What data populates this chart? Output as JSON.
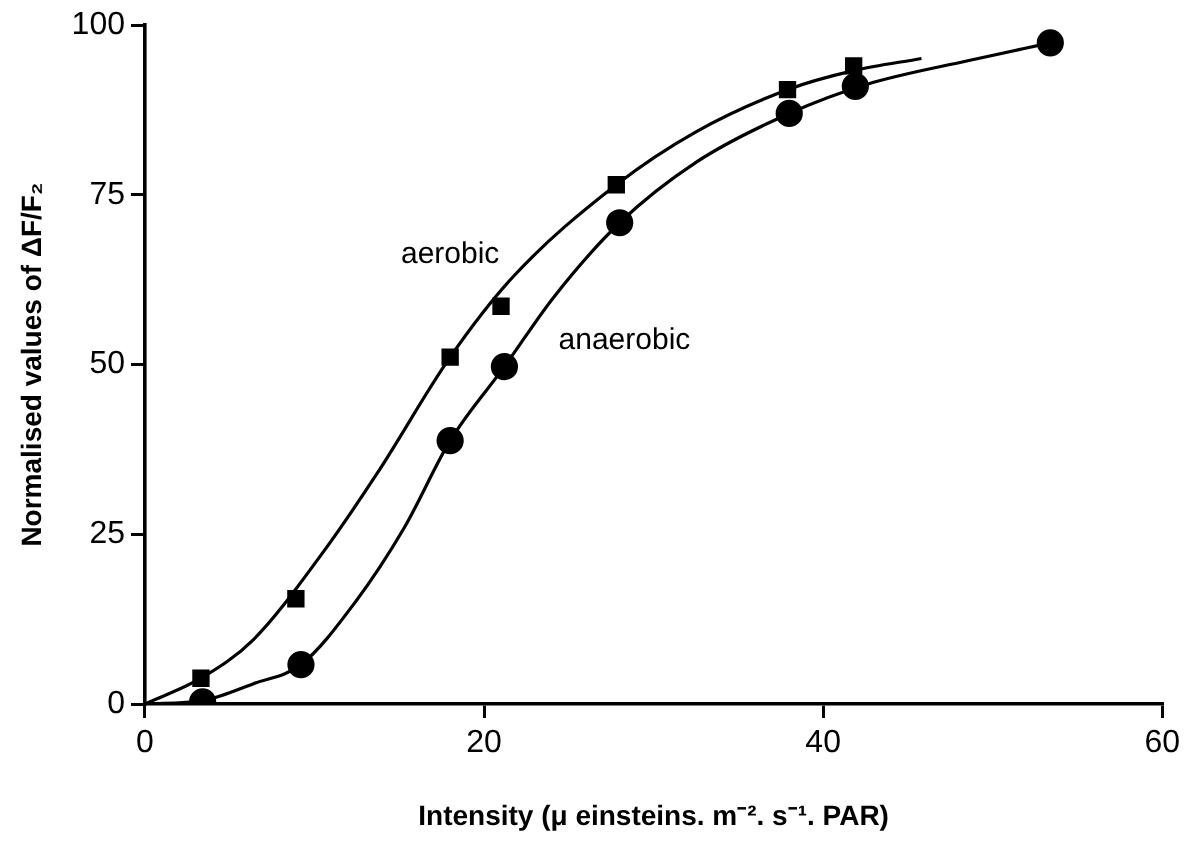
{
  "chart_data": {
    "type": "scatter",
    "xlabel": "Intensity (μ einsteins. m⁻². s⁻¹. PAR)",
    "ylabel": "Normalised values of ΔF/F₂",
    "xlim": [
      0,
      60
    ],
    "xticks": [
      0,
      20,
      40,
      60
    ],
    "ylim": [
      0,
      100
    ],
    "yticks": [
      0,
      25,
      50,
      75,
      100
    ],
    "grid": false,
    "legend": false,
    "series": [
      {
        "type": "scatter",
        "name": "aerobic",
        "marker": "square",
        "color": "#000000",
        "x": [
          3.3,
          8.9,
          18.0,
          21.0,
          27.8,
          37.9,
          41.8
        ],
        "values": [
          3.8,
          15.5,
          51.1,
          58.6,
          76.5,
          90.5,
          94.0
        ]
      },
      {
        "type": "scatter",
        "name": "anaerobic",
        "marker": "circle",
        "color": "#000000",
        "x": [
          3.4,
          9.2,
          18.0,
          21.2,
          28.0,
          38.0,
          41.9,
          53.4
        ],
        "values": [
          0.3,
          5.8,
          38.8,
          49.7,
          70.9,
          87.0,
          91.0,
          97.4
        ]
      },
      {
        "type": "line",
        "marker": "none",
        "color": "#000000",
        "x": [
          0,
          3.3,
          6.4,
          10.4,
          13.7,
          18.0,
          21.7,
          27.8,
          32.5,
          37.9,
          41.8,
          45.8
        ],
        "values": [
          0,
          3.8,
          9.5,
          22,
          34,
          51.1,
          62.9,
          76.5,
          84.3,
          90.5,
          93.3,
          95.1
        ]
      },
      {
        "type": "line",
        "marker": "none",
        "color": "#000000",
        "x": [
          0,
          3.4,
          6.4,
          9.2,
          12.4,
          15.3,
          18.0,
          21.2,
          24.1,
          28.0,
          32.5,
          38.0,
          42.6,
          48.6,
          53.4
        ],
        "values": [
          0,
          0.5,
          3,
          5.8,
          15,
          26,
          38.8,
          49.7,
          59.9,
          70.9,
          79.8,
          87.0,
          91.3,
          94.8,
          97.4
        ]
      }
    ]
  }
}
